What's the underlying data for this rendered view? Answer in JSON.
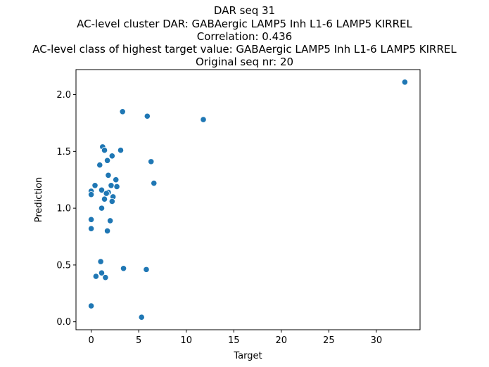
{
  "chart_data": {
    "type": "scatter",
    "title_lines": [
      "DAR seq 31",
      "AC-level cluster DAR: GABAergic LAMP5 Inh L1-6 LAMP5 KIRREL",
      "Correlation: 0.436",
      "AC-level class of highest target value: GABAergic LAMP5 Inh L1-6 LAMP5 KIRREL",
      "Original seq nr: 20"
    ],
    "xlabel": "Target",
    "ylabel": "Prediction",
    "xlim": [
      -1.6,
      34.6
    ],
    "ylim": [
      -0.07,
      2.22
    ],
    "xticks": [
      0,
      5,
      10,
      15,
      20,
      25,
      30
    ],
    "xtick_labels": [
      "0",
      "5",
      "10",
      "15",
      "20",
      "25",
      "30"
    ],
    "yticks": [
      0.0,
      0.5,
      1.0,
      1.5,
      2.0
    ],
    "ytick_labels": [
      "0.0",
      "0.5",
      "1.0",
      "1.5",
      "2.0"
    ],
    "grid": false,
    "marker_color": "#1f77b4",
    "points": [
      {
        "x": 33.0,
        "y": 2.11
      },
      {
        "x": 3.3,
        "y": 1.85
      },
      {
        "x": 5.9,
        "y": 1.81
      },
      {
        "x": 11.8,
        "y": 1.78
      },
      {
        "x": 1.2,
        "y": 1.54
      },
      {
        "x": 1.4,
        "y": 1.51
      },
      {
        "x": 3.1,
        "y": 1.51
      },
      {
        "x": 2.2,
        "y": 1.46
      },
      {
        "x": 1.7,
        "y": 1.42
      },
      {
        "x": 6.3,
        "y": 1.41
      },
      {
        "x": 0.9,
        "y": 1.38
      },
      {
        "x": 1.8,
        "y": 1.29
      },
      {
        "x": 2.6,
        "y": 1.25
      },
      {
        "x": 6.6,
        "y": 1.22
      },
      {
        "x": 0.4,
        "y": 1.2
      },
      {
        "x": 2.1,
        "y": 1.2
      },
      {
        "x": 2.7,
        "y": 1.19
      },
      {
        "x": 1.1,
        "y": 1.16
      },
      {
        "x": 0.0,
        "y": 1.15
      },
      {
        "x": 1.8,
        "y": 1.14
      },
      {
        "x": 1.6,
        "y": 1.13
      },
      {
        "x": 0.0,
        "y": 1.12
      },
      {
        "x": 2.3,
        "y": 1.1
      },
      {
        "x": 1.4,
        "y": 1.08
      },
      {
        "x": 2.2,
        "y": 1.06
      },
      {
        "x": 1.1,
        "y": 1.0
      },
      {
        "x": 0.0,
        "y": 0.9
      },
      {
        "x": 2.0,
        "y": 0.89
      },
      {
        "x": 0.0,
        "y": 0.82
      },
      {
        "x": 1.7,
        "y": 0.8
      },
      {
        "x": 1.0,
        "y": 0.53
      },
      {
        "x": 3.4,
        "y": 0.47
      },
      {
        "x": 5.8,
        "y": 0.46
      },
      {
        "x": 1.1,
        "y": 0.43
      },
      {
        "x": 0.5,
        "y": 0.4
      },
      {
        "x": 1.5,
        "y": 0.39
      },
      {
        "x": 0.0,
        "y": 0.14
      },
      {
        "x": 5.3,
        "y": 0.04
      }
    ]
  }
}
